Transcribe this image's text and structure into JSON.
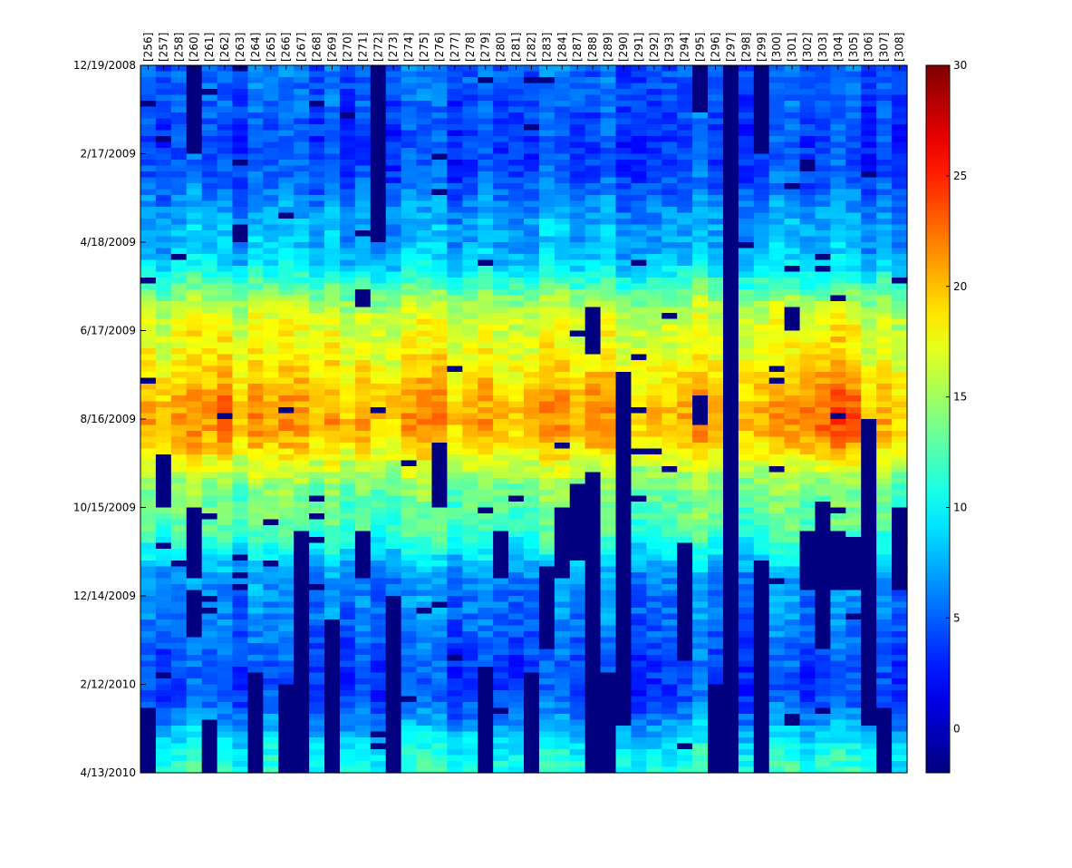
{
  "chart_data": {
    "type": "heatmap",
    "title": "",
    "xlabel": "",
    "ylabel": "",
    "x_tick_labels": [
      "[256]",
      "[257]",
      "[258]",
      "[260]",
      "[261]",
      "[262]",
      "[263]",
      "[264]",
      "[265]",
      "[266]",
      "[267]",
      "[268]",
      "[269]",
      "[270]",
      "[271]",
      "[272]",
      "[273]",
      "[274]",
      "[275]",
      "[276]",
      "[277]",
      "[278]",
      "[279]",
      "[280]",
      "[281]",
      "[282]",
      "[283]",
      "[284]",
      "[287]",
      "[288]",
      "[289]",
      "[290]",
      "[291]",
      "[292]",
      "[293]",
      "[294]",
      "[295]",
      "[296]",
      "[297]",
      "[298]",
      "[299]",
      "[300]",
      "[301]",
      "[302]",
      "[303]",
      "[304]",
      "[305]",
      "[306]",
      "[307]",
      "[308]"
    ],
    "y_tick_labels": [
      "12/19/2008",
      "2/17/2009",
      "4/18/2009",
      "6/17/2009",
      "8/16/2009",
      "10/15/2009",
      "12/14/2009",
      "2/12/2010",
      "4/13/2010"
    ],
    "y_range": [
      "12/19/2008",
      "4/13/2010"
    ],
    "colorbar": {
      "range": [
        -2,
        30
      ],
      "tick_labels": [
        "30",
        "25",
        "20",
        "15",
        "10",
        "5",
        "0"
      ],
      "colormap": "jet"
    },
    "seasonal_profile": {
      "description": "approximate mean value by time",
      "dates": [
        "12/19/2008",
        "2/17/2009",
        "4/18/2009",
        "6/17/2009",
        "8/16/2009",
        "10/15/2009",
        "12/14/2009",
        "2/12/2010",
        "4/13/2010"
      ],
      "values": [
        5,
        4,
        7.5,
        17,
        20.5,
        13,
        6,
        4,
        11
      ]
    },
    "missing_value": -2,
    "missing_blocks": [
      {
        "col": "[297]",
        "from": "12/19/2008",
        "to": "4/13/2010"
      },
      {
        "col": "[296]",
        "from": "2/12/2010",
        "to": "4/13/2010"
      },
      {
        "col": "[290]",
        "from": "7/15/2009",
        "to": "3/10/2010"
      },
      {
        "col": "[306]",
        "from": "8/16/2009",
        "to": "3/10/2010"
      },
      {
        "col": "[299]",
        "from": "12/19/2008",
        "to": "2/17/2009"
      },
      {
        "col": "[299]",
        "from": "11/20/2009",
        "to": "4/13/2010"
      },
      {
        "col": "[260]",
        "from": "12/19/2008",
        "to": "2/17/2009"
      },
      {
        "col": "[260]",
        "from": "10/15/2009",
        "to": "11/30/2009"
      },
      {
        "col": "[260]",
        "from": "12/10/2009",
        "to": "1/10/2010"
      },
      {
        "col": "[272]",
        "from": "12/19/2008",
        "to": "4/18/2009"
      },
      {
        "col": "[273]",
        "from": "12/14/2009",
        "to": "4/13/2010"
      },
      {
        "col": "[267]",
        "from": "11/01/2009",
        "to": "4/13/2010"
      },
      {
        "col": "[266]",
        "from": "2/12/2010",
        "to": "4/13/2010"
      },
      {
        "col": "[269]",
        "from": "1/01/2010",
        "to": "4/13/2010"
      },
      {
        "col": "[264]",
        "from": "2/05/2010",
        "to": "4/13/2010"
      },
      {
        "col": "[257]",
        "from": "9/10/2009",
        "to": "10/15/2009"
      },
      {
        "col": "[288]",
        "from": "6/01/2009",
        "to": "7/01/2009"
      },
      {
        "col": "[288]",
        "from": "9/20/2009",
        "to": "4/13/2010"
      },
      {
        "col": "[289]",
        "from": "2/05/2010",
        "to": "4/13/2010"
      },
      {
        "col": "[287]",
        "from": "10/01/2009",
        "to": "11/20/2009"
      },
      {
        "col": "[283]",
        "from": "11/25/2009",
        "to": "1/20/2010"
      },
      {
        "col": "[284]",
        "from": "10/15/2009",
        "to": "12/01/2009"
      },
      {
        "col": "[279]",
        "from": "2/01/2010",
        "to": "4/13/2010"
      },
      {
        "col": "[282]",
        "from": "2/05/2010",
        "to": "4/13/2010"
      },
      {
        "col": "[276]",
        "from": "9/01/2009",
        "to": "10/15/2009"
      },
      {
        "col": "[271]",
        "from": "11/01/2009",
        "to": "12/01/2009"
      },
      {
        "col": "[271]",
        "from": "5/20/2009",
        "to": "6/01/2009"
      },
      {
        "col": "[301]",
        "from": "6/01/2009",
        "to": "6/15/2009"
      },
      {
        "col": "[302]",
        "from": "11/01/2009",
        "to": "12/10/2009"
      },
      {
        "col": "[303]",
        "from": "10/10/2009",
        "to": "1/20/2010"
      },
      {
        "col": "[304]",
        "from": "11/01/2009",
        "to": "12/10/2009"
      },
      {
        "col": "[305]",
        "from": "11/05/2009",
        "to": "12/10/2009"
      },
      {
        "col": "[308]",
        "from": "10/15/2009",
        "to": "12/10/2009"
      },
      {
        "col": "[307]",
        "from": "3/01/2010",
        "to": "4/13/2010"
      },
      {
        "col": "[295]",
        "from": "12/19/2008",
        "to": "1/20/2009"
      },
      {
        "col": "[295]",
        "from": "8/01/2009",
        "to": "8/20/2009"
      },
      {
        "col": "[294]",
        "from": "11/10/2009",
        "to": "1/25/2010"
      },
      {
        "col": "[261]",
        "from": "3/10/2010",
        "to": "4/13/2010"
      },
      {
        "col": "[256]",
        "from": "3/01/2010",
        "to": "4/13/2010"
      },
      {
        "col": "[263]",
        "from": "4/05/2009",
        "to": "4/18/2009"
      },
      {
        "col": "[280]",
        "from": "11/01/2009",
        "to": "11/30/2009"
      }
    ]
  }
}
